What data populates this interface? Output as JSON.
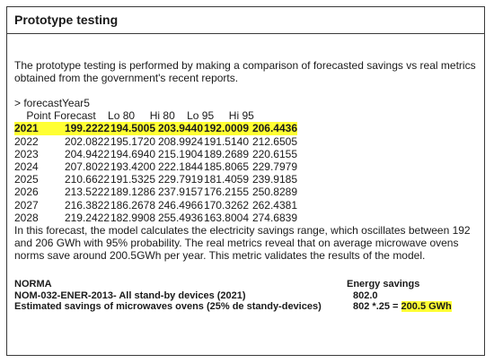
{
  "title": "Prototype testing",
  "intro": "The prototype testing is performed by making a comparison of forecasted savings vs real metrics obtained from the government's recent reports.",
  "forecast": {
    "command": "> forecastYear5",
    "header": "    Point Forecast    Lo 80     Hi 80    Lo 95     Hi 95",
    "rows": [
      [
        "2021",
        "199.2222",
        "194.5005",
        "203.9440",
        "192.0009",
        "206.4436"
      ],
      [
        "2022",
        "202.0822",
        "195.1720",
        "208.9924",
        "191.5140",
        "212.6505"
      ],
      [
        "2023",
        "204.9422",
        "194.6940",
        "215.1904",
        "189.2689",
        "220.6155"
      ],
      [
        "2024",
        "207.8022",
        "193.4200",
        "222.1844",
        "185.8065",
        "229.7979"
      ],
      [
        "2025",
        "210.6622",
        "191.5325",
        "229.7919",
        "181.4059",
        "239.9185"
      ],
      [
        "2026",
        "213.5222",
        "189.1286",
        "237.9157",
        "176.2155",
        "250.8289"
      ],
      [
        "2027",
        "216.3822",
        "186.2678",
        "246.4966",
        "170.3262",
        "262.4381"
      ],
      [
        "2028",
        "219.2422",
        "182.9908",
        "255.4936",
        "163.8004",
        "274.6839"
      ]
    ]
  },
  "conclusion": "In this forecast, the model calculates the electricity savings range, which oscillates between 192 and 206 GWh with 95% probability. The real metrics reveal that on average microwave ovens norms save around 200.5GWh per year. This metric validates the results of the model.",
  "norma": {
    "left_header": "NORMA",
    "right_header": "Energy savings",
    "row1_label": "NOM-032-ENER-2013-  All stand-by devices (2021)",
    "row1_value": "802.0",
    "row2_label": "Estimated savings of microwaves ovens (25% de standy-devices)",
    "row2_value_prefix": "802 *.25 = ",
    "row2_value_result": "200.5 GWh"
  },
  "colors": {
    "highlight": "#ffff33",
    "border": "#3a3a3a"
  }
}
